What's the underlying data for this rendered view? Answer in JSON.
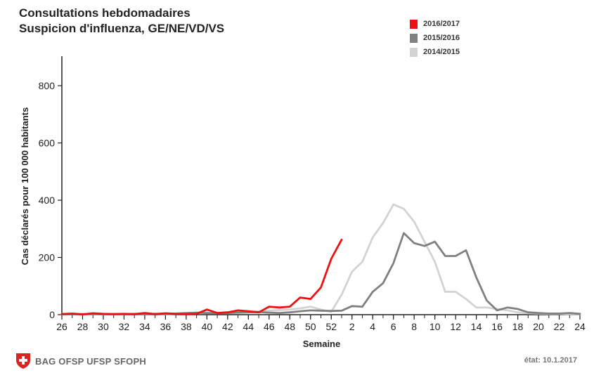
{
  "header": {
    "title_line1": "Consultations hebdomadaires",
    "title_line2": "Suspicion d'influenza, GE/NE/VD/VS"
  },
  "legend": [
    {
      "label": "2016/2017",
      "color": "#ee1111"
    },
    {
      "label": "2015/2016",
      "color": "#808080"
    },
    {
      "label": "2014/2015",
      "color": "#d3d3d3"
    }
  ],
  "footer": {
    "logo_text": "BAG OFSP UFSP SFOPH",
    "status": "état: 10.1.2017"
  },
  "chart_data": {
    "type": "line",
    "title": "Consultations hebdomadaires — Suspicion d'influenza, GE/NE/VD/VS",
    "xlabel": "Semaine",
    "ylabel": "Cas déclarés pour 100 000 habitants",
    "ylim": [
      0,
      900
    ],
    "yticks": [
      0,
      200,
      400,
      600,
      800
    ],
    "x_tick_labels": [
      "26",
      "28",
      "30",
      "32",
      "34",
      "36",
      "38",
      "40",
      "42",
      "44",
      "46",
      "48",
      "50",
      "52",
      "2",
      "4",
      "6",
      "8",
      "10",
      "12",
      "14",
      "16",
      "18",
      "20",
      "22",
      "24"
    ],
    "weeks": [
      "26",
      "27",
      "28",
      "29",
      "30",
      "31",
      "32",
      "33",
      "34",
      "35",
      "36",
      "37",
      "38",
      "39",
      "40",
      "41",
      "42",
      "43",
      "44",
      "45",
      "46",
      "47",
      "48",
      "49",
      "50",
      "51",
      "52",
      "1",
      "2",
      "3",
      "4",
      "5",
      "6",
      "7",
      "8",
      "9",
      "10",
      "11",
      "12",
      "13",
      "14",
      "15",
      "16",
      "17",
      "18",
      "19",
      "20",
      "21",
      "22",
      "23",
      "24"
    ],
    "series": [
      {
        "name": "2014/2015",
        "color": "#d3d3d3",
        "values": [
          2,
          3,
          2,
          2,
          2,
          2,
          2,
          3,
          2,
          3,
          2,
          3,
          4,
          5,
          6,
          7,
          8,
          9,
          10,
          12,
          14,
          16,
          18,
          22,
          28,
          18,
          10,
          70,
          150,
          185,
          270,
          320,
          385,
          370,
          325,
          255,
          185,
          80,
          80,
          55,
          25,
          25,
          20,
          15,
          8,
          5,
          4,
          3,
          3,
          2,
          2
        ]
      },
      {
        "name": "2015/2016",
        "color": "#808080",
        "values": [
          2,
          2,
          2,
          3,
          2,
          2,
          2,
          2,
          2,
          3,
          3,
          4,
          6,
          7,
          6,
          5,
          6,
          7,
          8,
          9,
          7,
          6,
          8,
          12,
          15,
          14,
          13,
          14,
          30,
          28,
          80,
          110,
          180,
          285,
          250,
          240,
          255,
          205,
          205,
          225,
          130,
          50,
          15,
          25,
          20,
          8,
          6,
          4,
          4,
          6,
          3
        ]
      },
      {
        "name": "2016/2017",
        "color": "#ee1111",
        "values": [
          2,
          4,
          1,
          5,
          3,
          2,
          3,
          2,
          6,
          2,
          5,
          3,
          2,
          3,
          18,
          6,
          8,
          15,
          12,
          8,
          28,
          25,
          28,
          60,
          55,
          95,
          195,
          262
        ]
      }
    ]
  }
}
